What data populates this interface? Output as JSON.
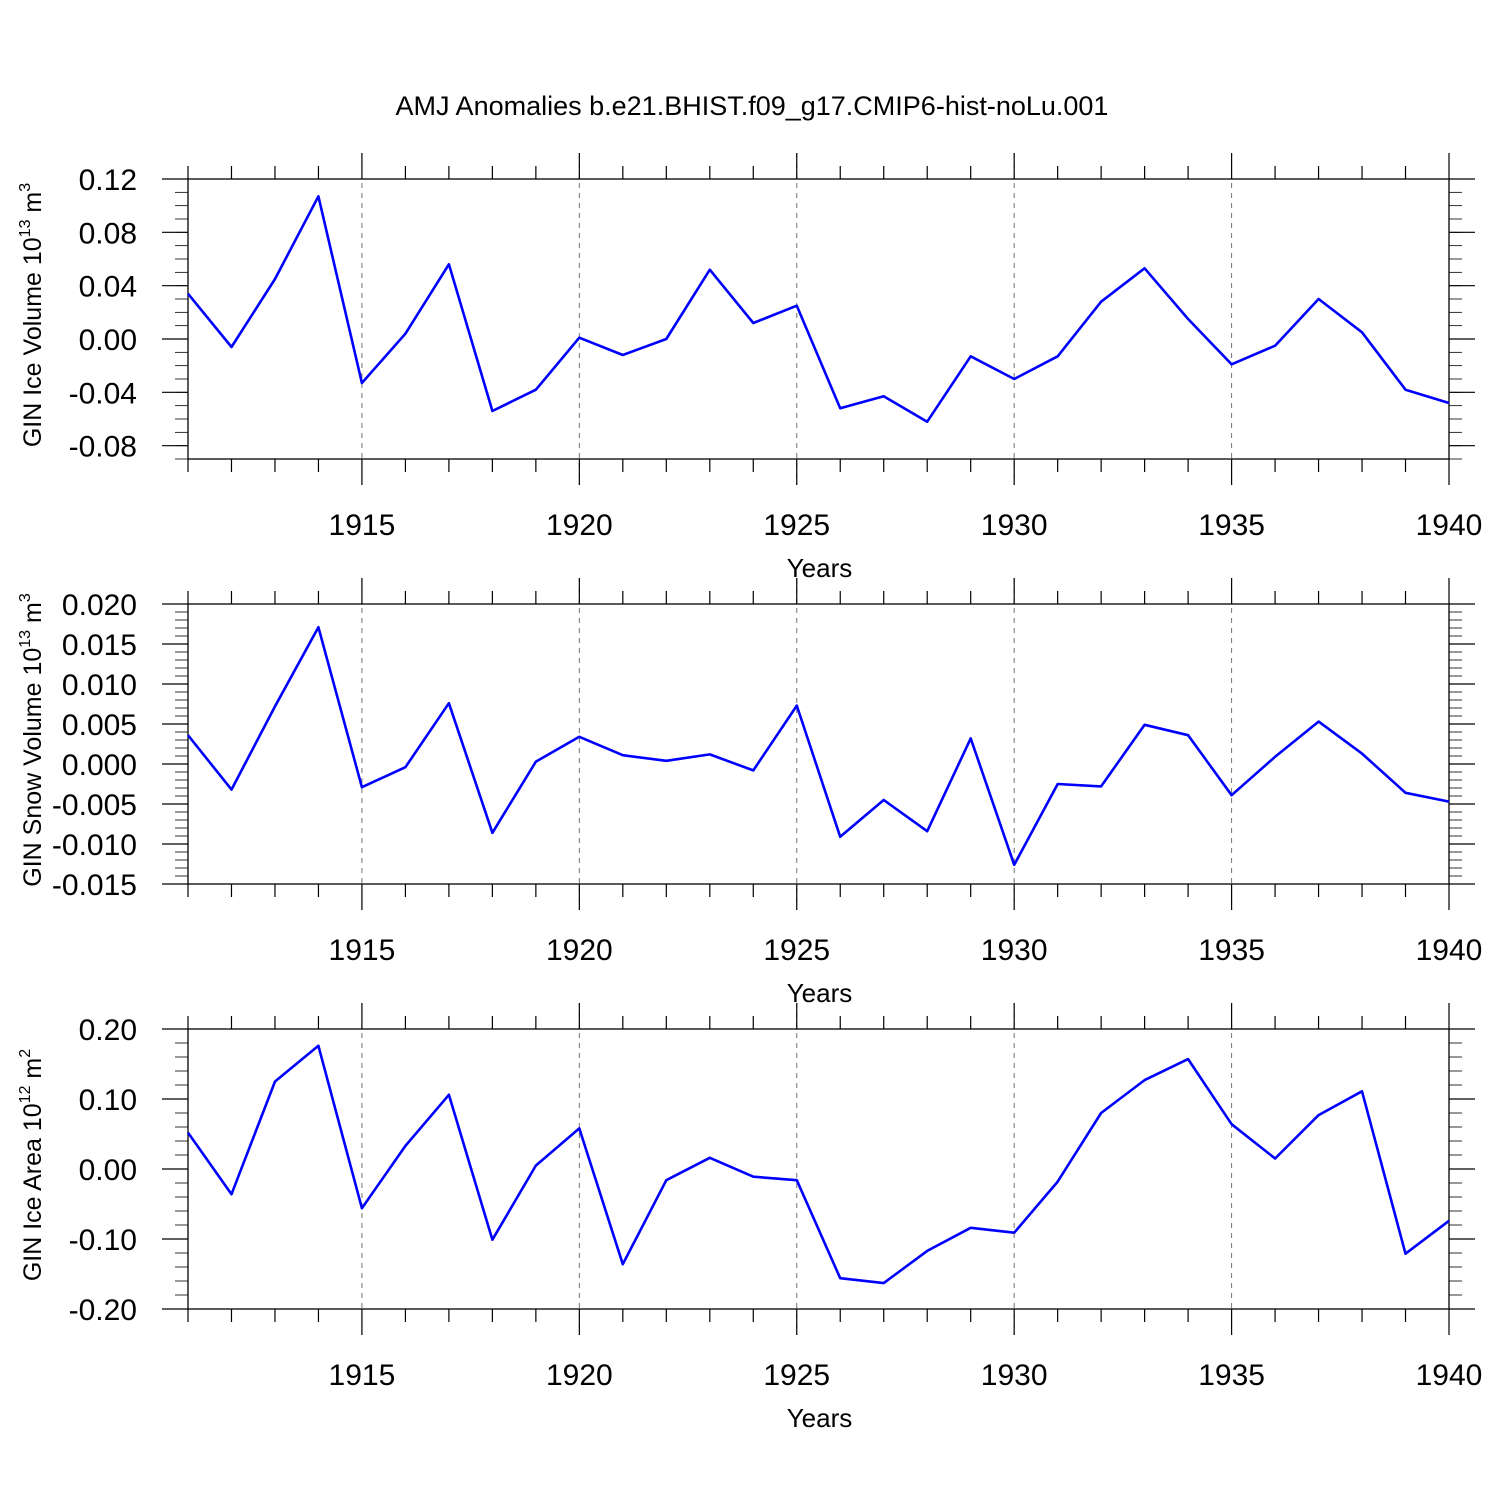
{
  "chart_data": {
    "title": "AMJ Anomalies b.e21.BHIST.f09_g17.CMIP6-hist-noLu.001",
    "line_color": "#0000ff",
    "years": [
      1911,
      1912,
      1913,
      1914,
      1915,
      1916,
      1917,
      1918,
      1919,
      1920,
      1921,
      1922,
      1923,
      1924,
      1925,
      1926,
      1927,
      1928,
      1929,
      1930,
      1931,
      1932,
      1933,
      1934,
      1935,
      1936,
      1937,
      1938,
      1939,
      1940
    ],
    "xlim": [
      1911,
      1940
    ],
    "xticks": [
      1915,
      1920,
      1925,
      1930,
      1935,
      1940
    ],
    "panels": [
      {
        "type": "line",
        "ylabel_main": "GIN Ice Volume 10",
        "ylabel_exp": "13",
        "ylabel_unit": " m",
        "ylabel_unit_exp": "3",
        "xlabel": "Years",
        "ylim": [
          -0.09,
          0.12
        ],
        "yticks": [
          "0.12",
          "0.08",
          "0.04",
          "0.00",
          "-0.04",
          "-0.08"
        ],
        "ytick_values": [
          0.12,
          0.08,
          0.04,
          0.0,
          -0.04,
          -0.08
        ],
        "minor_step": 0.01,
        "values": [
          0.034,
          -0.006,
          0.045,
          0.107,
          -0.033,
          0.004,
          0.056,
          -0.054,
          -0.038,
          0.001,
          -0.012,
          0.0,
          0.052,
          0.012,
          0.025,
          -0.052,
          -0.043,
          -0.062,
          -0.013,
          -0.03,
          -0.013,
          0.028,
          0.053,
          0.015,
          -0.019,
          -0.005,
          0.03,
          0.005,
          -0.038,
          -0.048
        ]
      },
      {
        "type": "line",
        "ylabel_main": "GIN Snow Volume 10",
        "ylabel_exp": "13",
        "ylabel_unit": " m",
        "ylabel_unit_exp": "3",
        "xlabel": "Years",
        "ylim": [
          -0.015,
          0.02
        ],
        "yticks": [
          "0.020",
          "0.015",
          "0.010",
          "0.005",
          "0.000",
          "-0.005",
          "-0.010",
          "-0.015"
        ],
        "ytick_values": [
          0.02,
          0.015,
          0.01,
          0.005,
          0.0,
          -0.005,
          -0.01,
          -0.015
        ],
        "minor_step": 0.001,
        "values": [
          0.0036,
          -0.0032,
          0.0072,
          0.0171,
          -0.0029,
          -0.0004,
          0.0076,
          -0.0086,
          0.0003,
          0.0034,
          0.0011,
          0.0004,
          0.0012,
          -0.0008,
          0.0073,
          -0.0091,
          -0.0045,
          -0.0084,
          0.0032,
          -0.0126,
          -0.0025,
          -0.0028,
          0.0049,
          0.0036,
          -0.0039,
          0.0009,
          0.0053,
          0.0013,
          -0.0036,
          -0.0047
        ]
      },
      {
        "type": "line",
        "ylabel_main": "GIN Ice Area 10",
        "ylabel_exp": "12",
        "ylabel_unit": " m",
        "ylabel_unit_exp": "2",
        "xlabel": "Years",
        "ylim": [
          -0.2,
          0.2
        ],
        "yticks": [
          "0.20",
          "0.10",
          "0.00",
          "-0.10",
          "-0.20"
        ],
        "ytick_values": [
          0.2,
          0.1,
          0.0,
          -0.1,
          -0.2
        ],
        "minor_step": 0.02,
        "values": [
          0.052,
          -0.036,
          0.125,
          0.176,
          -0.056,
          0.033,
          0.106,
          -0.101,
          0.005,
          0.058,
          -0.136,
          -0.016,
          0.016,
          -0.011,
          -0.016,
          -0.156,
          -0.163,
          -0.117,
          -0.084,
          -0.091,
          -0.018,
          0.08,
          0.127,
          0.157,
          0.064,
          0.015,
          0.077,
          0.111,
          -0.121,
          -0.074
        ]
      }
    ]
  }
}
